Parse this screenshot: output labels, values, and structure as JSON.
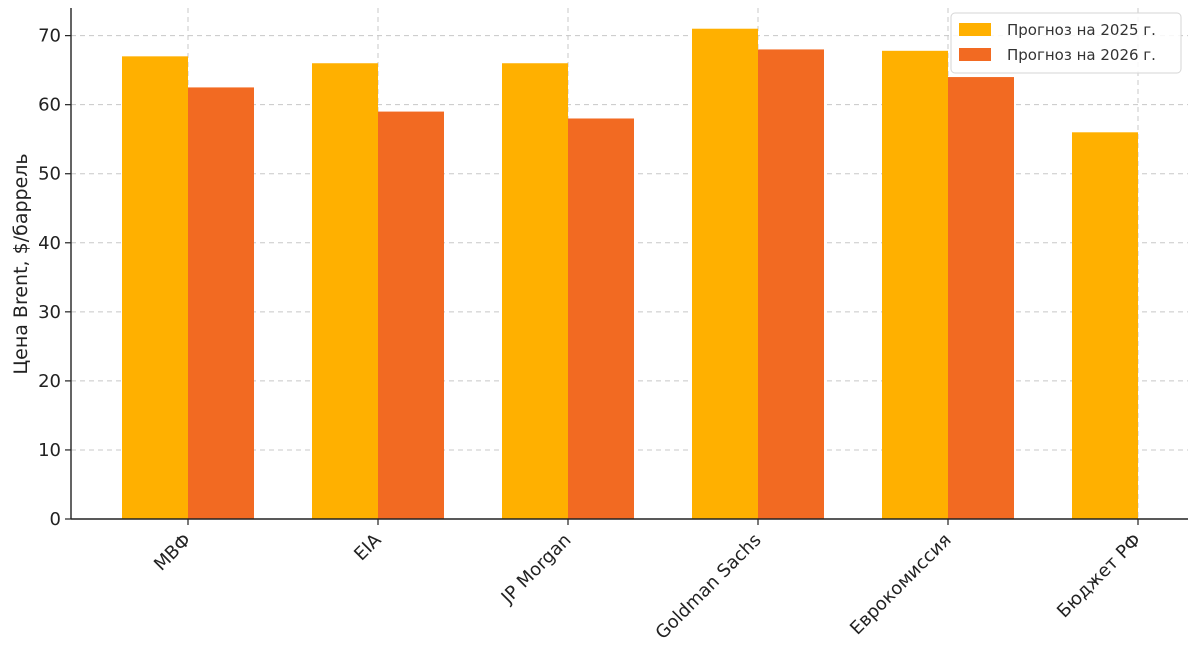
{
  "chart_data": {
    "type": "bar",
    "title": "",
    "xlabel": "",
    "ylabel": "Цена Brent, $/баррель",
    "ylim": [
      0,
      74
    ],
    "yticks": [
      0,
      10,
      20,
      30,
      40,
      50,
      60,
      70
    ],
    "grid": true,
    "legend_position": "top-right",
    "categories": [
      "МВФ",
      "EIA",
      "JP Morgan",
      "Goldman Sachs",
      "Еврокомиссия",
      "Бюджет РФ"
    ],
    "series": [
      {
        "name": "Прогноз на 2025 г.",
        "color": "#FFB000",
        "values": [
          67,
          66,
          66,
          71,
          67.8,
          56
        ]
      },
      {
        "name": "Прогноз на 2026 г.",
        "color": "#F26A22",
        "values": [
          62.5,
          59,
          58,
          68,
          64,
          null
        ]
      }
    ]
  }
}
